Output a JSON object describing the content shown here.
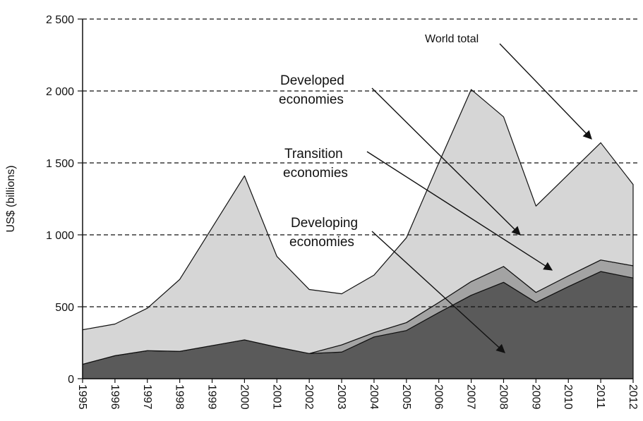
{
  "chart_data": {
    "type": "stacked_area",
    "y_label": "US$ (billions)",
    "categories": [
      "1995",
      "1996",
      "1997",
      "1998",
      "1999",
      "2000",
      "2001",
      "2002",
      "2003",
      "2004",
      "2005",
      "2006",
      "2007",
      "2008",
      "2009",
      "2010",
      "2011",
      "2012"
    ],
    "series": [
      {
        "name": "Developing economies",
        "color": "#5a5a5a",
        "values": [
          100,
          160,
          195,
          190,
          230,
          270,
          220,
          175,
          185,
          290,
          335,
          460,
          580,
          670,
          530,
          640,
          745,
          700
        ]
      },
      {
        "name": "Transition economies",
        "color": "#a3a3a3",
        "values": [
          0,
          0,
          0,
          0,
          0,
          0,
          0,
          0,
          50,
          30,
          55,
          70,
          95,
          110,
          70,
          75,
          80,
          85
        ]
      },
      {
        "name": "Developed economies",
        "color": "#d6d6d6",
        "values": [
          240,
          220,
          295,
          500,
          820,
          1140,
          630,
          445,
          355,
          400,
          590,
          970,
          1335,
          1040,
          600,
          705,
          815,
          565
        ]
      }
    ],
    "annotations": [
      {
        "lines": [
          "World total"
        ]
      },
      {
        "lines": [
          "Developed",
          "economies"
        ]
      },
      {
        "lines": [
          "Transition",
          "economies"
        ]
      },
      {
        "lines": [
          "Developing",
          "economies"
        ]
      }
    ],
    "ylim": [
      0,
      2500
    ],
    "yticks": [
      0,
      500,
      {
        "value": 1000,
        "label": "1 000"
      },
      {
        "value": 1500,
        "label": "1 500"
      },
      {
        "value": 2000,
        "label": "2 000"
      },
      {
        "value": 2500,
        "label": "2 500"
      }
    ],
    "grid": true
  }
}
